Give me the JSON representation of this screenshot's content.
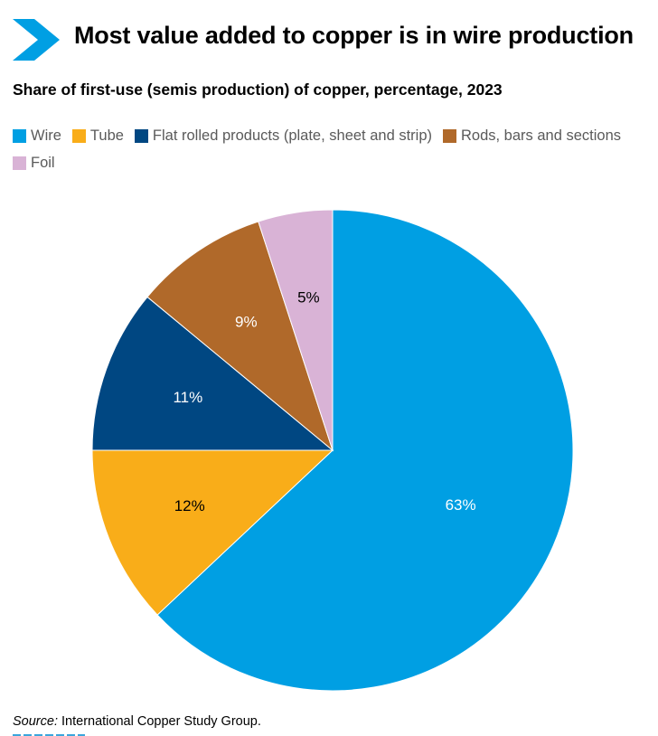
{
  "header": {
    "title": "Most value added to copper is in wire production",
    "chevron_color": "#009fe3"
  },
  "subtitle": "Share of first-use (semis production) of copper, percentage, 2023",
  "chart_data": {
    "type": "pie",
    "title": "Most value added to copper is in wire production",
    "subtitle": "Share of first-use (semis production) of copper, percentage, 2023",
    "legend_position": "top-left",
    "slices": [
      {
        "label": "Wire",
        "value": 63,
        "display": "63%",
        "color": "#009fe3",
        "label_color": "#ffffff"
      },
      {
        "label": "Tube",
        "value": 12,
        "display": "12%",
        "color": "#f9ad19",
        "label_color": "#000000"
      },
      {
        "label": "Flat rolled products (plate, sheet and strip)",
        "value": 11,
        "display": "11%",
        "color": "#004782",
        "label_color": "#ffffff"
      },
      {
        "label": "Rods, bars and sections",
        "value": 9,
        "display": "9%",
        "color": "#b0692a",
        "label_color": "#ffffff"
      },
      {
        "label": "Foil",
        "value": 5,
        "display": "5%",
        "color": "#d9b3d6",
        "label_color": "#000000"
      }
    ],
    "start_angle_deg": 0,
    "direction": "clockwise"
  },
  "source": {
    "label": "Source:",
    "text": " International Copper Study Group."
  }
}
